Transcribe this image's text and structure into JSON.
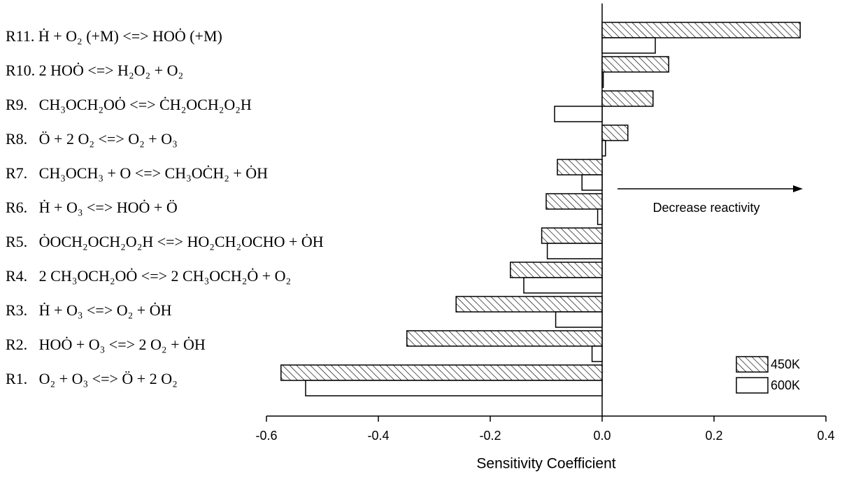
{
  "chart_data": {
    "type": "barh",
    "x_label": "Sensitivity Coefficient",
    "annotation": "Decrease reactivity",
    "categories": [
      "R11. Ḣ + O₂ (+M) <=> HOȮ (+M)",
      "R10. 2 HOȮ <=> H₂O₂ + O₂",
      "R9.   CH₃OCH₂OȮ <=> ĊH₂OCH₂O₂H",
      "R8.   Ö + 2 O₂ <=> O₂ + O₃",
      "R7.   CH₃OCH₃ + O <=> CH₃OĊH₂ + ȮH",
      "R6.   Ḣ + O₃ <=> HOȮ + Ö",
      "R5.   ȮOCH₂OCH₂O₂H <=> HO₂CH₂OCHO + ȮH",
      "R4.   2 CH₃OCH₂OȮ <=> 2 CH₃OCH₂Ȯ + O₂",
      "R3.   Ḣ + O₃ <=> O₂ + ȮH",
      "R2.   HOȮ + O₃ <=> 2 O₂ + ȮH",
      "R1.   O₂ + O₃ <=> Ö + 2 O₂"
    ],
    "series": [
      {
        "name": "450K",
        "color": "#000000",
        "pattern": "hatch",
        "values": [
          0.354,
          0.119,
          0.091,
          0.046,
          -0.08,
          -0.1,
          -0.108,
          -0.164,
          -0.261,
          -0.349,
          -0.574
        ]
      },
      {
        "name": "600K",
        "color": "#000000",
        "pattern": "none",
        "values": [
          0.095,
          0.002,
          -0.085,
          0.006,
          -0.036,
          -0.008,
          -0.098,
          -0.14,
          -0.083,
          -0.018,
          -0.53
        ]
      }
    ],
    "xlim": [
      -0.6,
      0.4
    ],
    "xticks": [
      {
        "value": -0.6,
        "label": "-0.6"
      },
      {
        "value": -0.4,
        "label": "-0.4"
      },
      {
        "value": -0.2,
        "label": "-0.2"
      },
      {
        "value": 0,
        "label": "0.0"
      },
      {
        "value": 0.2,
        "label": "0.2"
      },
      {
        "value": 0.4,
        "label": "0.4"
      }
    ],
    "legend": "lower right"
  }
}
